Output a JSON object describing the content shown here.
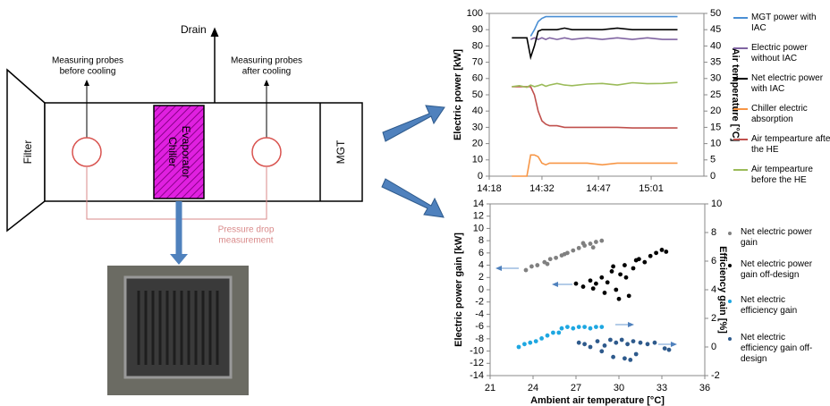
{
  "diagram": {
    "drain": "Drain",
    "probes_before": [
      "Measuring probes",
      "before cooling"
    ],
    "probes_after": [
      "Measuring probes",
      "after cooling"
    ],
    "filter": "Filter",
    "evaporator": [
      "Chiller",
      "Evaporator"
    ],
    "mgt": "MGT",
    "pressure_drop": [
      "Pressure drop",
      "measurement"
    ]
  },
  "chart_data": [
    {
      "type": "line",
      "ylabel": "Electric power [kW]",
      "y2label": "Air temperature [°C]",
      "x": [
        864,
        866,
        868,
        869,
        870,
        871,
        872,
        873,
        874,
        876,
        878,
        880,
        884,
        888,
        892,
        896,
        900,
        904,
        908
      ],
      "xlim": [
        858,
        915
      ],
      "xticks": [
        {
          "value": 858,
          "label": "14:18"
        },
        {
          "value": 872,
          "label": "14:32"
        },
        {
          "value": 887,
          "label": "14:47"
        },
        {
          "value": 901,
          "label": "15:01"
        }
      ],
      "ylim": [
        0,
        100
      ],
      "yticks": [
        0,
        10,
        20,
        30,
        40,
        50,
        60,
        70,
        80,
        90,
        100
      ],
      "y2lim": [
        0,
        50
      ],
      "y2ticks": [
        0,
        5,
        10,
        15,
        20,
        25,
        30,
        35,
        40,
        45,
        50
      ],
      "legend": "right",
      "series": [
        {
          "name": "MGT power with IAC",
          "color": "#4a8fd4",
          "values": [
            null,
            null,
            null,
            86,
            90,
            95,
            97,
            98,
            98,
            98,
            98,
            98,
            98,
            98,
            98,
            98,
            98,
            98,
            98
          ]
        },
        {
          "name": "Electric power without IAC",
          "color": "#8064a2",
          "values": [
            null,
            null,
            null,
            84,
            85,
            84,
            85,
            84,
            85,
            84,
            85,
            84,
            85,
            84,
            85,
            84,
            85,
            84,
            84
          ]
        },
        {
          "name": "Net electric power with IAC",
          "color": "#000000",
          "values": [
            85,
            85,
            85,
            73,
            80,
            89,
            90,
            90,
            90,
            90,
            91,
            90,
            90,
            90,
            91,
            90,
            90,
            90,
            90
          ]
        },
        {
          "name": "Chiller electric absorption",
          "color": "#f79646",
          "values": [
            0,
            0,
            0,
            13,
            13,
            12,
            8,
            7,
            8,
            8,
            8,
            8,
            8,
            7,
            8,
            8,
            8,
            8,
            8
          ]
        },
        {
          "name": "Air tempearture after the HE",
          "color": "#c0504d",
          "axis": "y2",
          "values": [
            27.5,
            27.5,
            27.5,
            27.5,
            25,
            20,
            17,
            16,
            15.5,
            15.5,
            15,
            15,
            15,
            15,
            15,
            14.8,
            14.8,
            14.8,
            14.8
          ]
        },
        {
          "name": "Air tempearture before the HE",
          "color": "#9bbb59",
          "axis": "y2",
          "values": [
            27.5,
            27.8,
            27.3,
            28,
            27.5,
            27.8,
            28.2,
            27.6,
            28,
            28.5,
            28,
            27.8,
            28.3,
            28.5,
            28,
            28.7,
            28.4,
            28.5,
            28.8
          ]
        }
      ]
    },
    {
      "type": "scatter",
      "xlabel": "Ambient air temperature [°C]",
      "ylabel": "Electric power gain [kW]",
      "y2label": "Efficiency gain [%]",
      "xlim": [
        21,
        36
      ],
      "xticks": [
        21,
        24,
        27,
        30,
        33,
        36
      ],
      "ylim": [
        -14,
        14
      ],
      "yticks": [
        -14,
        -12,
        -10,
        -8,
        -6,
        -4,
        -2,
        0,
        2,
        4,
        6,
        8,
        10,
        12,
        14
      ],
      "y2lim": [
        -2,
        10
      ],
      "y2ticks": [
        -2,
        0,
        2,
        4,
        6,
        8,
        10
      ],
      "legend": "right",
      "series": [
        {
          "name": "Net electric power gain",
          "color": "#808080",
          "x": [
            23.5,
            23.9,
            24.3,
            24.8,
            25.2,
            25.6,
            26.0,
            26.4,
            26.8,
            27.2,
            27.6,
            28.0,
            28.4,
            28.8,
            25.0,
            26.2,
            27.5,
            28.2
          ],
          "values": [
            3.2,
            3.8,
            4.0,
            4.5,
            5.0,
            5.2,
            5.6,
            6.0,
            6.4,
            6.8,
            7.2,
            7.5,
            7.8,
            8.0,
            4.2,
            5.8,
            7.6,
            6.9
          ]
        },
        {
          "name": "Net electric power gain off-design",
          "color": "#000000",
          "x": [
            27.0,
            27.5,
            28.0,
            28.4,
            28.8,
            29.2,
            29.5,
            29.8,
            30.1,
            30.4,
            30.7,
            31.0,
            31.4,
            31.8,
            32.2,
            32.6,
            33.0,
            33.3,
            29.0,
            30.0,
            30.5,
            31.2,
            28.2,
            29.6
          ],
          "values": [
            1.0,
            0.5,
            1.5,
            1.0,
            2.0,
            1.2,
            3.0,
            0.0,
            2.5,
            4.0,
            -1.0,
            3.5,
            5.0,
            4.5,
            5.5,
            6.0,
            6.5,
            6.2,
            -0.5,
            -1.5,
            2.0,
            4.8,
            0.2,
            3.8
          ]
        },
        {
          "name": "Net electric efficiency gain",
          "color": "#1ea7e1",
          "axis": "y2",
          "x": [
            23.0,
            23.4,
            23.8,
            24.2,
            24.6,
            25.0,
            25.4,
            25.8,
            26.0,
            26.4,
            26.8,
            27.2,
            27.6,
            28.0,
            28.4,
            28.8
          ],
          "values": [
            0.0,
            0.2,
            0.3,
            0.4,
            0.6,
            0.8,
            1.0,
            1.0,
            1.3,
            1.4,
            1.3,
            1.4,
            1.4,
            1.3,
            1.4,
            1.4
          ]
        },
        {
          "name": "Net electric efficiency gain off-design",
          "color": "#2e5a8c",
          "axis": "y2",
          "x": [
            27.2,
            27.6,
            28.0,
            28.5,
            29.0,
            29.4,
            29.8,
            30.2,
            30.6,
            31.0,
            31.5,
            32.0,
            32.5,
            33.2,
            33.5,
            29.6,
            30.4,
            31.2,
            28.8,
            30.8
          ],
          "values": [
            0.3,
            0.2,
            0.0,
            0.4,
            0.1,
            0.5,
            0.3,
            0.5,
            0.2,
            0.4,
            0.3,
            0.2,
            0.3,
            -0.1,
            -0.2,
            -0.7,
            -0.8,
            -0.5,
            -0.3,
            -0.9
          ]
        }
      ]
    }
  ]
}
